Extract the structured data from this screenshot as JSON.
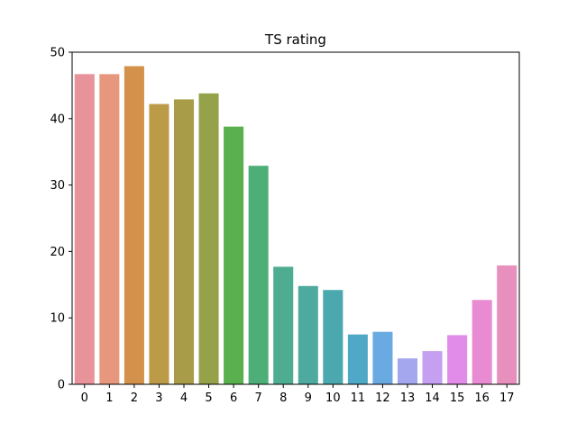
{
  "chart_data": {
    "type": "bar",
    "title": "TS rating",
    "xlabel": "",
    "ylabel": "",
    "categories": [
      "0",
      "1",
      "2",
      "3",
      "4",
      "5",
      "6",
      "7",
      "8",
      "9",
      "10",
      "11",
      "12",
      "13",
      "14",
      "15",
      "16",
      "17"
    ],
    "values": [
      46.7,
      46.7,
      47.9,
      42.2,
      42.9,
      43.8,
      38.8,
      32.9,
      17.7,
      14.8,
      14.2,
      7.5,
      7.9,
      3.9,
      5.0,
      7.4,
      12.7,
      17.9
    ],
    "ylim": [
      0,
      50
    ],
    "yticks": [
      0,
      10,
      20,
      30,
      40,
      50
    ],
    "grid": false,
    "colors": [
      "#e8929a",
      "#e8977f",
      "#d3914b",
      "#bb9a48",
      "#a89c48",
      "#95a24a",
      "#5ab04e",
      "#4daf77",
      "#4ead91",
      "#4ea99f",
      "#4ba8ae",
      "#4ea8c6",
      "#6aaae2",
      "#a4a7ee",
      "#c59ff0",
      "#e18ce9",
      "#e98bd2",
      "#e790bd"
    ]
  }
}
